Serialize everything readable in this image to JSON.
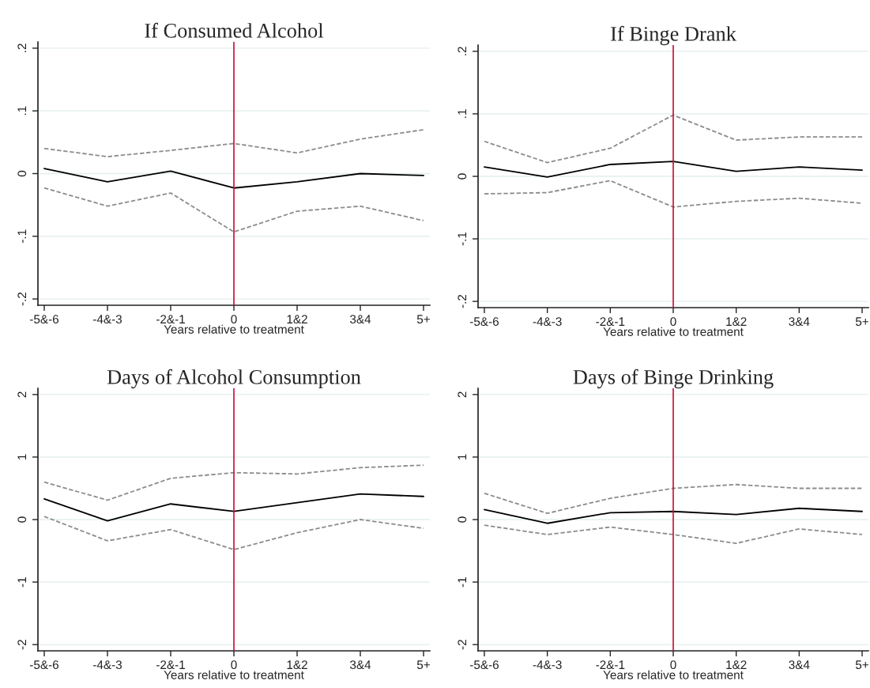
{
  "chart_data": [
    {
      "type": "line",
      "title": "If Consumed Alcohol",
      "xlabel": "Years relative to treatment",
      "categories": [
        "-5&-6",
        "-4&-3",
        "-2&-1",
        "0",
        "1&2",
        "3&4",
        "5+"
      ],
      "series": [
        {
          "color": "#000000",
          "line_style": "solid",
          "values": [
            0.008,
            -0.013,
            0.004,
            -0.023,
            -0.013,
            0.0,
            -0.003
          ]
        },
        {
          "color": "#8c8c8c",
          "line_style": "dashed",
          "values": [
            0.04,
            0.027,
            0.037,
            0.048,
            0.033,
            0.055,
            0.07
          ]
        },
        {
          "color": "#8c8c8c",
          "line_style": "dashed",
          "values": [
            -0.023,
            -0.052,
            -0.031,
            -0.093,
            -0.06,
            -0.052,
            -0.075
          ]
        }
      ],
      "ylim": [
        -0.21,
        0.21
      ],
      "yticks": [
        {
          "value": -0.2,
          "label": "-.2"
        },
        {
          "value": -0.1,
          "label": "-.1"
        },
        0,
        {
          "value": 0.1,
          "label": ".1"
        },
        {
          "value": 0.2,
          "label": ".2"
        }
      ],
      "ref_lines": [
        {
          "axis": "x",
          "value": "0",
          "color": "#c8103a"
        }
      ],
      "grid": "y",
      "legend": false
    },
    {
      "type": "line",
      "title": "If Binge Drank",
      "xlabel": "Years relative to treatment",
      "categories": [
        "-5&-6",
        "-4&-3",
        "-2&-1",
        "0",
        "1&2",
        "3&4",
        "5+"
      ],
      "series": [
        {
          "color": "#000000",
          "line_style": "solid",
          "values": [
            0.015,
            -0.001,
            0.019,
            0.024,
            0.008,
            0.015,
            0.01
          ]
        },
        {
          "color": "#8c8c8c",
          "line_style": "dashed",
          "values": [
            0.056,
            0.022,
            0.045,
            0.098,
            0.058,
            0.063,
            0.063
          ]
        },
        {
          "color": "#8c8c8c",
          "line_style": "dashed",
          "values": [
            -0.028,
            -0.026,
            -0.007,
            -0.049,
            -0.04,
            -0.035,
            -0.043
          ]
        }
      ],
      "ylim": [
        -0.21,
        0.21
      ],
      "yticks": [
        {
          "value": -0.2,
          "label": "-.2"
        },
        {
          "value": -0.1,
          "label": "-.1"
        },
        0,
        {
          "value": 0.1,
          "label": ".1"
        },
        {
          "value": 0.2,
          "label": ".2"
        }
      ],
      "ref_lines": [
        {
          "axis": "x",
          "value": "0",
          "color": "#c8103a"
        }
      ],
      "grid": "y",
      "legend": false
    },
    {
      "type": "line",
      "title": "Days of Alcohol Consumption",
      "xlabel": "Years relative to treatment",
      "categories": [
        "-5&-6",
        "-4&-3",
        "-2&-1",
        "0",
        "1&2",
        "3&4",
        "5+"
      ],
      "series": [
        {
          "color": "#000000",
          "line_style": "solid",
          "values": [
            0.33,
            -0.02,
            0.25,
            0.13,
            0.27,
            0.41,
            0.37
          ]
        },
        {
          "color": "#8c8c8c",
          "line_style": "dashed",
          "values": [
            0.6,
            0.31,
            0.66,
            0.75,
            0.73,
            0.83,
            0.87
          ]
        },
        {
          "color": "#8c8c8c",
          "line_style": "dashed",
          "values": [
            0.05,
            -0.34,
            -0.16,
            -0.48,
            -0.21,
            0.0,
            -0.14
          ]
        }
      ],
      "ylim": [
        -2.1,
        2.1
      ],
      "yticks": [
        -2,
        -1,
        0,
        1,
        2
      ],
      "ref_lines": [
        {
          "axis": "x",
          "value": "0",
          "color": "#c8103a"
        }
      ],
      "grid": "y",
      "legend": false
    },
    {
      "type": "line",
      "title": "Days of Binge Drinking",
      "xlabel": "Years relative to treatment",
      "categories": [
        "-5&-6",
        "-4&-3",
        "-2&-1",
        "0",
        "1&2",
        "3&4",
        "5+"
      ],
      "series": [
        {
          "color": "#000000",
          "line_style": "solid",
          "values": [
            0.16,
            -0.06,
            0.11,
            0.13,
            0.08,
            0.18,
            0.13
          ]
        },
        {
          "color": "#8c8c8c",
          "line_style": "dashed",
          "values": [
            0.42,
            0.1,
            0.34,
            0.5,
            0.56,
            0.5,
            0.5
          ]
        },
        {
          "color": "#8c8c8c",
          "line_style": "dashed",
          "values": [
            -0.09,
            -0.24,
            -0.12,
            -0.24,
            -0.38,
            -0.15,
            -0.24
          ]
        }
      ],
      "ylim": [
        -2.1,
        2.1
      ],
      "yticks": [
        -2,
        -1,
        0,
        1,
        2
      ],
      "ref_lines": [
        {
          "axis": "x",
          "value": "0",
          "color": "#c8103a"
        }
      ],
      "grid": "y",
      "legend": false
    }
  ]
}
